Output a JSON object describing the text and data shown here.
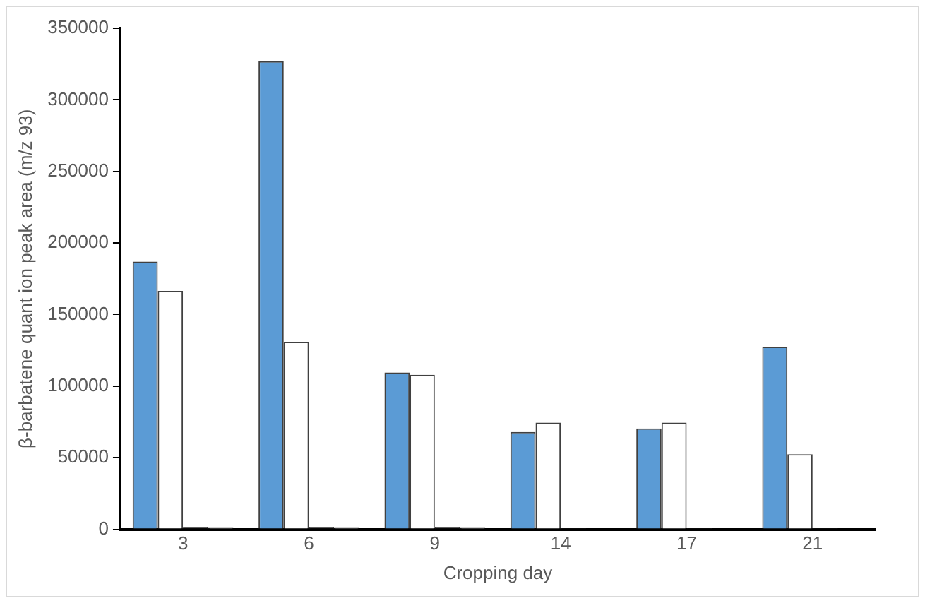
{
  "chart_data": {
    "type": "bar",
    "xlabel": "Cropping day",
    "ylabel": "β-barbatene quant ion peak area (m/z 93)",
    "categories": [
      "3",
      "6",
      "9",
      "14",
      "17",
      "21"
    ],
    "series": [
      {
        "color": "#5b9bd5",
        "values": [
          187000,
          327000,
          109500,
          68000,
          70500,
          127500
        ]
      },
      {
        "color": "#ffffff",
        "values": [
          166500,
          131000,
          108000,
          74500,
          74500,
          52500
        ]
      },
      {
        "color": "#1f1f1f",
        "values": [
          1500,
          1500,
          1500,
          800,
          800,
          800
        ]
      },
      {
        "color": "#d9d9d9",
        "values": [
          1000,
          1000,
          1000,
          500,
          500,
          500
        ]
      }
    ],
    "ylim": [
      0,
      350000
    ],
    "yticks": [
      0,
      50000,
      100000,
      150000,
      200000,
      250000,
      300000,
      350000
    ],
    "grid": false,
    "legend": false
  }
}
